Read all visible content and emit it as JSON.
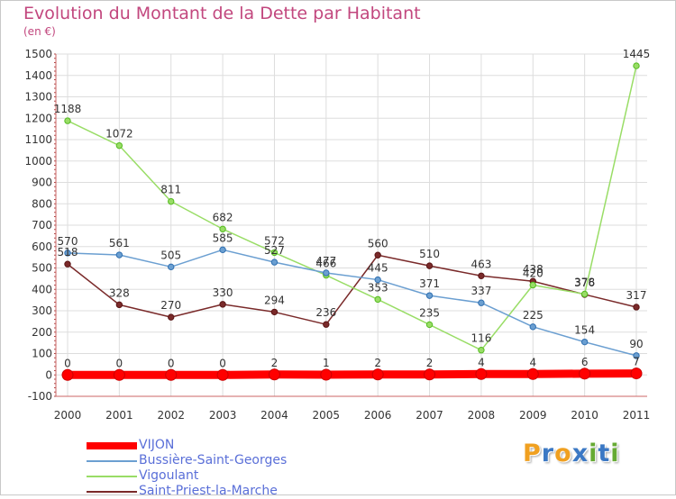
{
  "chart_data": {
    "type": "line",
    "title": "Evolution du Montant de la Dette par Habitant",
    "unit": "(en €)",
    "x": [
      "2000",
      "2001",
      "2002",
      "2003",
      "2004",
      "2005",
      "2006",
      "2007",
      "2008",
      "2009",
      "2010",
      "2011"
    ],
    "ylim": [
      -100,
      1500
    ],
    "yticks": [
      -100,
      0,
      100,
      200,
      300,
      400,
      500,
      600,
      700,
      800,
      900,
      1000,
      1100,
      1200,
      1300,
      1400,
      1500
    ],
    "grid": true,
    "legend": "bottom-left",
    "series": [
      {
        "name": "VIJON",
        "color": "#ff0000",
        "values": [
          0,
          0,
          0,
          0,
          2,
          1,
          2,
          2,
          4,
          4,
          6,
          7
        ]
      },
      {
        "name": "Bussière-Saint-Georges",
        "color": "#6b9fd1",
        "values": [
          570,
          561,
          505,
          585,
          527,
          477,
          445,
          371,
          337,
          225,
          154,
          90
        ]
      },
      {
        "name": "Vigoulant",
        "color": "#99dd66",
        "values": [
          1188,
          1072,
          811,
          682,
          572,
          466,
          353,
          235,
          116,
          420,
          378,
          1445
        ]
      },
      {
        "name": "Saint-Priest-la-Marche",
        "color": "#7a2a2a",
        "values": [
          518,
          328,
          270,
          330,
          294,
          236,
          560,
          510,
          463,
          438,
          376,
          317
        ]
      }
    ]
  },
  "logo": {
    "letters": [
      "P",
      "r",
      "o",
      "x",
      "i",
      "t",
      "i"
    ],
    "colors": [
      "#f0a020",
      "#3b78c4",
      "#f0a020",
      "#3b78c4",
      "#66aa33",
      "#3b78c4",
      "#66aa33"
    ]
  }
}
